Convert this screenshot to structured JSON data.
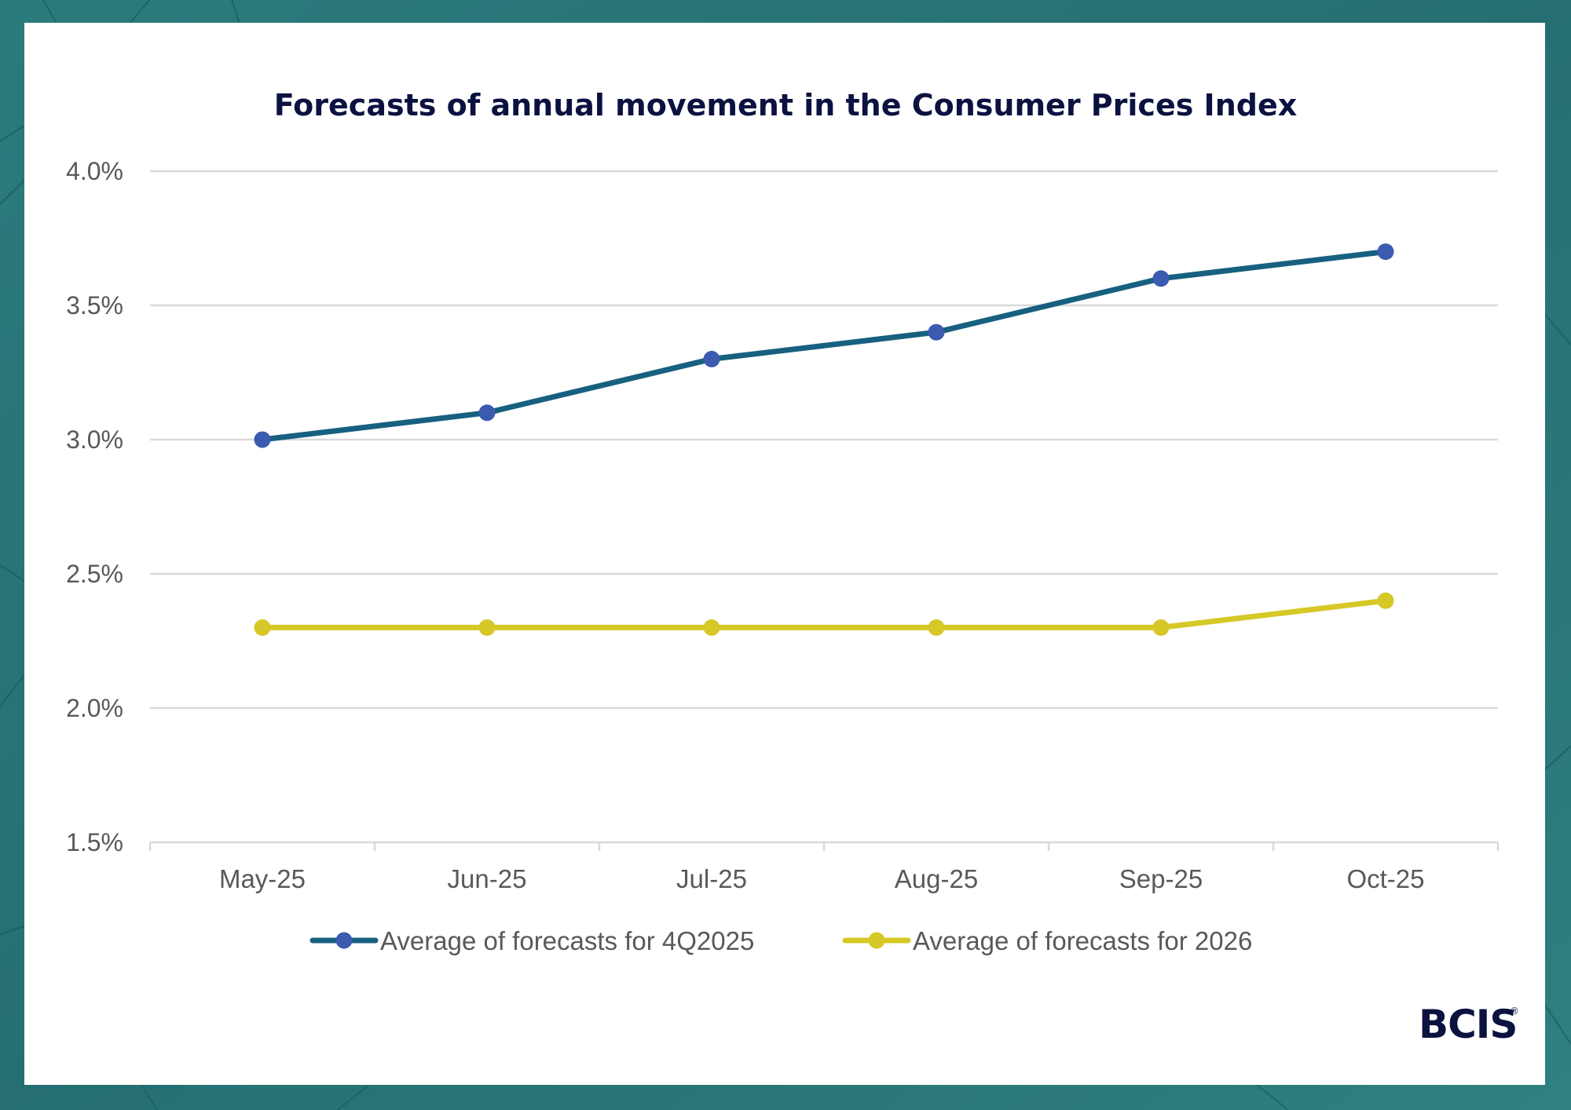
{
  "colors": {
    "background": "#2a7a7c",
    "panel": "#ffffff",
    "title": "#0b1240",
    "grid": "#d9d9d9",
    "axis_text": "#595959"
  },
  "logo": {
    "text": "BCIS",
    "mark": "®"
  },
  "chart_data": {
    "type": "line",
    "title": "Forecasts of annual movement in the Consumer Prices Index",
    "xlabel": "",
    "ylabel": "",
    "categories": [
      "May-25",
      "Jun-25",
      "Jul-25",
      "Aug-25",
      "Sep-25",
      "Oct-25"
    ],
    "ylim": [
      1.5,
      4.0
    ],
    "yticks": [
      1.5,
      2.0,
      2.5,
      3.0,
      3.5,
      4.0
    ],
    "ytick_labels": [
      "1.5%",
      "2.0%",
      "2.5%",
      "3.0%",
      "3.5%",
      "4.0%"
    ],
    "grid": true,
    "legend_position": "bottom",
    "series": [
      {
        "name": "Average of forecasts for 4Q2025",
        "line_color": "#17607f",
        "marker_color": "#3a5bb0",
        "values": [
          3.0,
          3.1,
          3.3,
          3.4,
          3.6,
          3.7
        ]
      },
      {
        "name": "Average of forecasts for 2026",
        "line_color": "#d6c826",
        "marker_color": "#d6c826",
        "values": [
          2.3,
          2.3,
          2.3,
          2.3,
          2.3,
          2.4
        ]
      }
    ]
  }
}
